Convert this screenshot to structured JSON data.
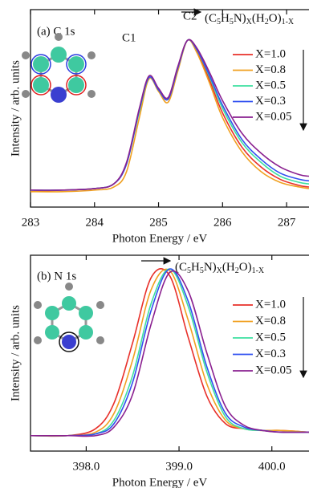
{
  "chart_data": [
    {
      "type": "line",
      "panel_label": "(a) C 1s",
      "xlabel": "Photon Energy / eV",
      "ylabel": "Intensity / arb. units",
      "formula": [
        "(C",
        "5",
        "H",
        "5",
        "N)",
        "X",
        "(H",
        "2",
        "O)",
        "1-X"
      ],
      "annotations": [
        {
          "text": "C1",
          "color": "#2a3ce0"
        },
        {
          "text": "C2",
          "color": "#e02020"
        }
      ],
      "xlim": [
        283,
        287.35
      ],
      "xticks": [
        283,
        284,
        285,
        286,
        287
      ],
      "ylim": [
        -0.08,
        1.2
      ],
      "legend": "upper right",
      "x": [
        283,
        283.5,
        284,
        284.3,
        284.5,
        284.7,
        284.85,
        285,
        285.15,
        285.3,
        285.45,
        285.6,
        285.8,
        286,
        286.3,
        286.6,
        286.9,
        287.2,
        287.35
      ],
      "series": [
        {
          "name": "X=1.0",
          "color": "#e8302a",
          "values": [
            0.02,
            0.03,
            0.04,
            0.07,
            0.2,
            0.55,
            0.76,
            0.68,
            0.62,
            0.82,
            1.0,
            0.93,
            0.74,
            0.53,
            0.31,
            0.18,
            0.1,
            0.06,
            0.05
          ]
        },
        {
          "name": "X=0.8",
          "color": "#f0a020",
          "values": [
            0.02,
            0.02,
            0.03,
            0.05,
            0.15,
            0.5,
            0.75,
            0.67,
            0.6,
            0.8,
            1.0,
            0.92,
            0.72,
            0.5,
            0.28,
            0.15,
            0.08,
            0.05,
            0.04
          ]
        },
        {
          "name": "X=0.5",
          "color": "#3de0a0",
          "values": [
            0.03,
            0.03,
            0.04,
            0.07,
            0.2,
            0.54,
            0.76,
            0.68,
            0.62,
            0.82,
            1.0,
            0.94,
            0.76,
            0.56,
            0.34,
            0.21,
            0.12,
            0.08,
            0.07
          ]
        },
        {
          "name": "X=0.3",
          "color": "#3050f0",
          "values": [
            0.03,
            0.03,
            0.04,
            0.07,
            0.2,
            0.55,
            0.76,
            0.68,
            0.62,
            0.82,
            1.0,
            0.94,
            0.77,
            0.58,
            0.36,
            0.23,
            0.14,
            0.1,
            0.09
          ]
        },
        {
          "name": "X=0.05",
          "color": "#8a2090",
          "values": [
            0.03,
            0.03,
            0.04,
            0.07,
            0.21,
            0.56,
            0.77,
            0.69,
            0.63,
            0.83,
            1.0,
            0.95,
            0.79,
            0.61,
            0.4,
            0.27,
            0.18,
            0.13,
            0.12
          ]
        }
      ]
    },
    {
      "type": "line",
      "panel_label": "(b) N 1s",
      "xlabel": "Photon Energy / eV",
      "ylabel": "Intensity / arb. units",
      "formula": [
        "(C",
        "5",
        "H",
        "5",
        "N)",
        "X",
        "(H",
        "2",
        "O)",
        "1-X"
      ],
      "xlim": [
        397.4,
        400.4
      ],
      "xticks": [
        {
          "value": 398,
          "label": "398.0"
        },
        {
          "value": 399,
          "label": "399.0"
        },
        {
          "value": 400,
          "label": "400.0"
        }
      ],
      "ylim": [
        -0.06,
        1.08
      ],
      "legend": "upper right",
      "x": [
        397.4,
        397.8,
        398.1,
        398.3,
        398.5,
        398.7,
        398.9,
        399.1,
        399.3,
        399.5,
        399.7,
        399.9,
        400.1,
        400.4
      ],
      "series": [
        {
          "name": "X=1.0",
          "color": "#e8302a",
          "values": [
            0.03,
            0.03,
            0.07,
            0.22,
            0.57,
            0.95,
            0.96,
            0.6,
            0.26,
            0.1,
            0.07,
            0.06,
            0.06,
            0.05
          ]
        },
        {
          "name": "X=0.8",
          "color": "#f0a020",
          "values": [
            0.03,
            0.03,
            0.05,
            0.16,
            0.47,
            0.88,
            0.99,
            0.7,
            0.33,
            0.12,
            0.07,
            0.06,
            0.06,
            0.05
          ]
        },
        {
          "name": "X=0.5",
          "color": "#3de0a0",
          "values": [
            0.03,
            0.03,
            0.04,
            0.12,
            0.38,
            0.8,
            1.0,
            0.78,
            0.4,
            0.14,
            0.07,
            0.06,
            0.05,
            0.05
          ]
        },
        {
          "name": "X=0.3",
          "color": "#3050f0",
          "values": [
            0.03,
            0.03,
            0.04,
            0.1,
            0.34,
            0.76,
            1.0,
            0.81,
            0.43,
            0.16,
            0.08,
            0.06,
            0.05,
            0.05
          ]
        },
        {
          "name": "X=0.05",
          "color": "#8a2090",
          "values": [
            0.03,
            0.03,
            0.03,
            0.08,
            0.27,
            0.68,
            0.98,
            0.87,
            0.51,
            0.2,
            0.09,
            0.06,
            0.05,
            0.05
          ]
        }
      ]
    }
  ]
}
